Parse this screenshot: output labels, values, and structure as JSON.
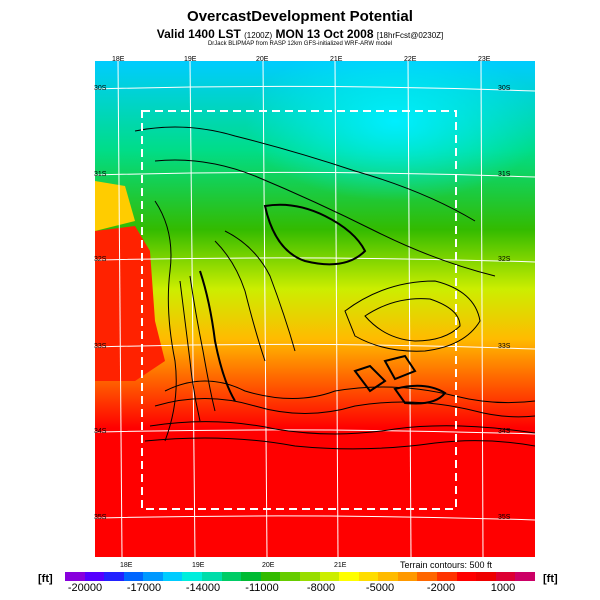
{
  "header": {
    "title": "OvercastDevelopment Potential",
    "valid": "Valid 1400 LST",
    "valid_code": "(1200Z)",
    "date": "MON 13 Oct 2008",
    "forecast_code": "[18hrFcst@0230Z]",
    "credit": "DrJack BLIPMAP from RASP 12km GFS-initialized WRF-ARW model"
  },
  "map": {
    "lon_labels_top": [
      "18E",
      "19E",
      "20E",
      "21E",
      "22E",
      "23E"
    ],
    "lon_labels_bottom": [
      "18E",
      "19E",
      "20E",
      "21E"
    ],
    "lat_labels_left": [
      "30S",
      "31S",
      "32S",
      "33S",
      "34S",
      "35S"
    ],
    "lat_labels_right": [
      "30S",
      "31S",
      "32S",
      "33S",
      "34S",
      "35S"
    ],
    "terrain_note": "Terrain contours: 500 ft"
  },
  "colorbar": {
    "unit_left": "[ft]",
    "unit_right": "[ft]",
    "ticks": [
      "-20000",
      "-17000",
      "-14000",
      "-11000",
      "-8000",
      "-5000",
      "-2000",
      "1000"
    ],
    "colors": [
      "#8800dd",
      "#5500ff",
      "#2222ff",
      "#0066ff",
      "#0099ff",
      "#00ccff",
      "#00eedd",
      "#00ddaa",
      "#00cc66",
      "#00bb33",
      "#33bb00",
      "#66cc00",
      "#99dd00",
      "#ccee00",
      "#ffff00",
      "#ffdd00",
      "#ffbb00",
      "#ff9900",
      "#ff6600",
      "#ff3300",
      "#ff0000",
      "#ee0000",
      "#dd0033",
      "#cc0066"
    ]
  }
}
